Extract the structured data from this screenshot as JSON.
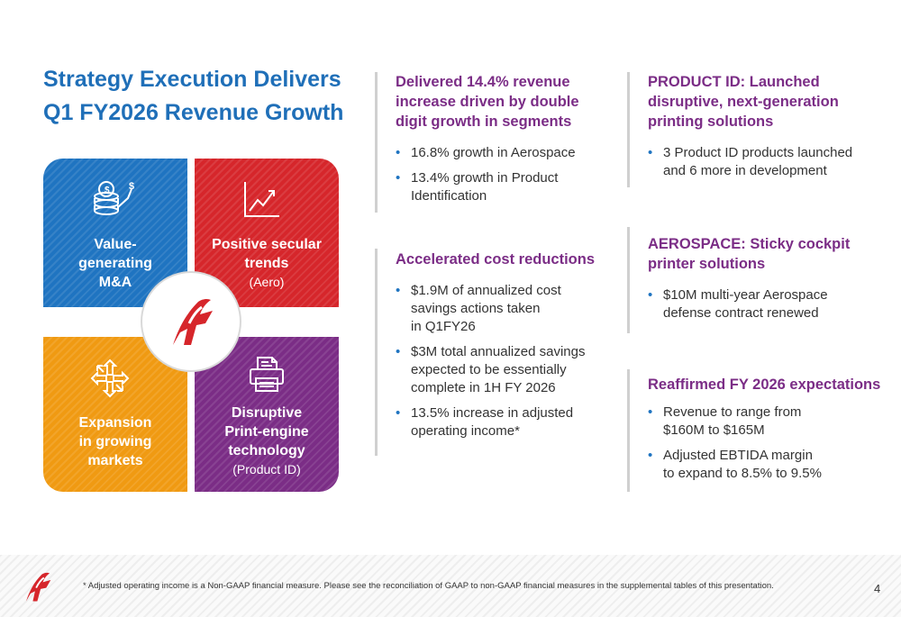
{
  "title": {
    "line1": "Strategy Execution Delivers",
    "line2": "Q1 FY2026 Revenue Growth"
  },
  "quadrants": {
    "top_left": {
      "lines": [
        "Value-",
        "generating",
        "M&A"
      ],
      "icon": "money-growth-icon",
      "color": "#1f74c1"
    },
    "top_right": {
      "lines": [
        "Positive secular",
        "trends"
      ],
      "sub": "(Aero)",
      "icon": "trend-chart-icon",
      "color": "#d6262b"
    },
    "bottom_left": {
      "lines": [
        "Expansion",
        "in growing",
        "markets"
      ],
      "icon": "expand-arrows-icon",
      "color": "#f09a12"
    },
    "bottom_right": {
      "lines": [
        "Disruptive",
        "Print-engine",
        "technology"
      ],
      "sub": "(Product ID)",
      "icon": "printer-icon",
      "color": "#7b2d86"
    }
  },
  "middle": {
    "block1": {
      "heading": [
        "Delivered 14.4% revenue",
        "increase driven by double",
        "digit growth in segments"
      ],
      "bullets": [
        [
          "16.8% growth in Aerospace"
        ],
        [
          "13.4% growth in Product",
          "Identification"
        ]
      ]
    },
    "block2": {
      "heading": [
        "Accelerated cost reductions"
      ],
      "bullets": [
        [
          "$1.9M of annualized cost",
          "savings actions taken",
          "in Q1FY26"
        ],
        [
          "$3M total annualized savings",
          "expected to be essentially",
          "complete in 1H FY 2026"
        ],
        [
          "13.5% increase in adjusted",
          "operating income*"
        ]
      ]
    }
  },
  "right": {
    "block1": {
      "heading": [
        "PRODUCT ID:  Launched",
        "disruptive, next-generation",
        "printing solutions"
      ],
      "bullets": [
        [
          "3 Product ID products launched",
          "and 6 more in development"
        ]
      ]
    },
    "block2": {
      "heading": [
        "AEROSPACE:  Sticky cockpit",
        "printer solutions"
      ],
      "bullets": [
        [
          "$10M multi-year Aerospace",
          "defense contract renewed"
        ]
      ]
    },
    "block3": {
      "heading": [
        "Reaffirmed FY 2026 expectations"
      ],
      "bullets": [
        [
          "Revenue to range from",
          "$160M to $165M"
        ],
        [
          "Adjusted EBTIDA margin",
          "to expand to 8.5% to 9.5%"
        ]
      ]
    }
  },
  "footer": {
    "footnote": "* Adjusted operating income is a Non-GAAP financial measure.  Please see the reconciliation of GAAP to non-GAAP financial measures in the supplemental tables of this presentation.",
    "page_number": "4"
  },
  "colors": {
    "title": "#1f6fb8",
    "heading": "#7b2d86",
    "bullet": "#1f74c1",
    "logo_red": "#d6262b"
  }
}
